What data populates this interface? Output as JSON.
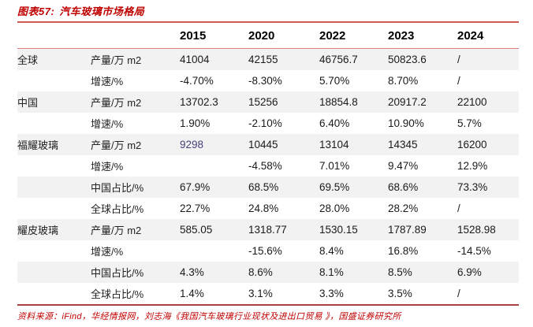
{
  "title": {
    "label": "图表57:",
    "text": "汽车玻璃市场格局"
  },
  "colors": {
    "accent_red": "#c00000",
    "rule_top": "#cf5b57",
    "rule_header": "#e0827d",
    "rule_bottom": "#a8423e",
    "stripe_gray": "#f2f2f2",
    "highlight_navy": "#44437c"
  },
  "table": {
    "year_headers": [
      "2015",
      "2020",
      "2022",
      "2023",
      "2024"
    ],
    "rows": [
      {
        "group": "全球",
        "metric": "产量/万 m2",
        "values": [
          "41004",
          "42155",
          "46756.7",
          "50823.6",
          "/"
        ]
      },
      {
        "group": "",
        "metric": "增速/%",
        "values": [
          "-4.70%",
          "-8.30%",
          "5.70%",
          "8.70%",
          "/"
        ]
      },
      {
        "group": "中国",
        "metric": "产量/万 m2",
        "values": [
          "13702.3",
          "15256",
          "18854.8",
          "20917.2",
          "22100"
        ]
      },
      {
        "group": "",
        "metric": "增速/%",
        "values": [
          "1.90%",
          "-2.10%",
          "6.40%",
          "10.90%",
          "5.7%"
        ]
      },
      {
        "group": "福耀玻璃",
        "metric": "产量/万 m2",
        "values": [
          "9298",
          "10445",
          "13104",
          "14345",
          "16200"
        ],
        "highlight_cells": [
          0
        ]
      },
      {
        "group": "",
        "metric": "增速/%",
        "values": [
          "",
          "-4.58%",
          "7.01%",
          "9.47%",
          "12.9%"
        ]
      },
      {
        "group": "",
        "metric": "中国占比/%",
        "values": [
          "67.9%",
          "68.5%",
          "69.5%",
          "68.6%",
          "73.3%"
        ]
      },
      {
        "group": "",
        "metric": "全球占比/%",
        "values": [
          "22.7%",
          "24.8%",
          "28.0%",
          "28.2%",
          "/"
        ]
      },
      {
        "group": "耀皮玻璃",
        "metric": "产量/万 m2",
        "values": [
          "585.05",
          "1318.77",
          "1530.15",
          "1787.89",
          "1528.98"
        ]
      },
      {
        "group": "",
        "metric": "增速/%",
        "values": [
          "",
          "-15.6%",
          "8.4%",
          "16.8%",
          "-14.5%"
        ]
      },
      {
        "group": "",
        "metric": "中国占比/%",
        "values": [
          "4.3%",
          "8.6%",
          "8.1%",
          "8.5%",
          "6.9%"
        ]
      },
      {
        "group": "",
        "metric": "全球占比/%",
        "values": [
          "1.4%",
          "3.1%",
          "3.3%",
          "3.5%",
          "/"
        ]
      }
    ]
  },
  "footer": {
    "source": "资料来源：iFind，华经情报网，刘志海《我国汽车玻璃行业现状及进出口贸易 》，国盛证券研究所"
  },
  "chart_data": {
    "type": "table",
    "title": "图表57: 汽车玻璃市场格局",
    "categories": [
      "2015",
      "2020",
      "2022",
      "2023",
      "2024"
    ],
    "series": [
      {
        "name": "全球 产量/万 m2",
        "values": [
          41004,
          42155,
          46756.7,
          50823.6,
          null
        ]
      },
      {
        "name": "全球 增速/%",
        "values": [
          -4.7,
          -8.3,
          5.7,
          8.7,
          null
        ]
      },
      {
        "name": "中国 产量/万 m2",
        "values": [
          13702.3,
          15256,
          18854.8,
          20917.2,
          22100
        ]
      },
      {
        "name": "中国 增速/%",
        "values": [
          1.9,
          -2.1,
          6.4,
          10.9,
          5.7
        ]
      },
      {
        "name": "福耀玻璃 产量/万 m2",
        "values": [
          9298,
          10445,
          13104,
          14345,
          16200
        ]
      },
      {
        "name": "福耀玻璃 增速/%",
        "values": [
          null,
          -4.58,
          7.01,
          9.47,
          12.9
        ]
      },
      {
        "name": "福耀玻璃 中国占比/%",
        "values": [
          67.9,
          68.5,
          69.5,
          68.6,
          73.3
        ]
      },
      {
        "name": "福耀玻璃 全球占比/%",
        "values": [
          22.7,
          24.8,
          28.0,
          28.2,
          null
        ]
      },
      {
        "name": "耀皮玻璃 产量/万 m2",
        "values": [
          585.05,
          1318.77,
          1530.15,
          1787.89,
          1528.98
        ]
      },
      {
        "name": "耀皮玻璃 增速/%",
        "values": [
          null,
          -15.6,
          8.4,
          16.8,
          -14.5
        ]
      },
      {
        "name": "耀皮玻璃 中国占比/%",
        "values": [
          4.3,
          8.6,
          8.1,
          8.5,
          6.9
        ]
      },
      {
        "name": "耀皮玻璃 全球占比/%",
        "values": [
          1.4,
          3.1,
          3.3,
          3.5,
          null
        ]
      }
    ]
  }
}
